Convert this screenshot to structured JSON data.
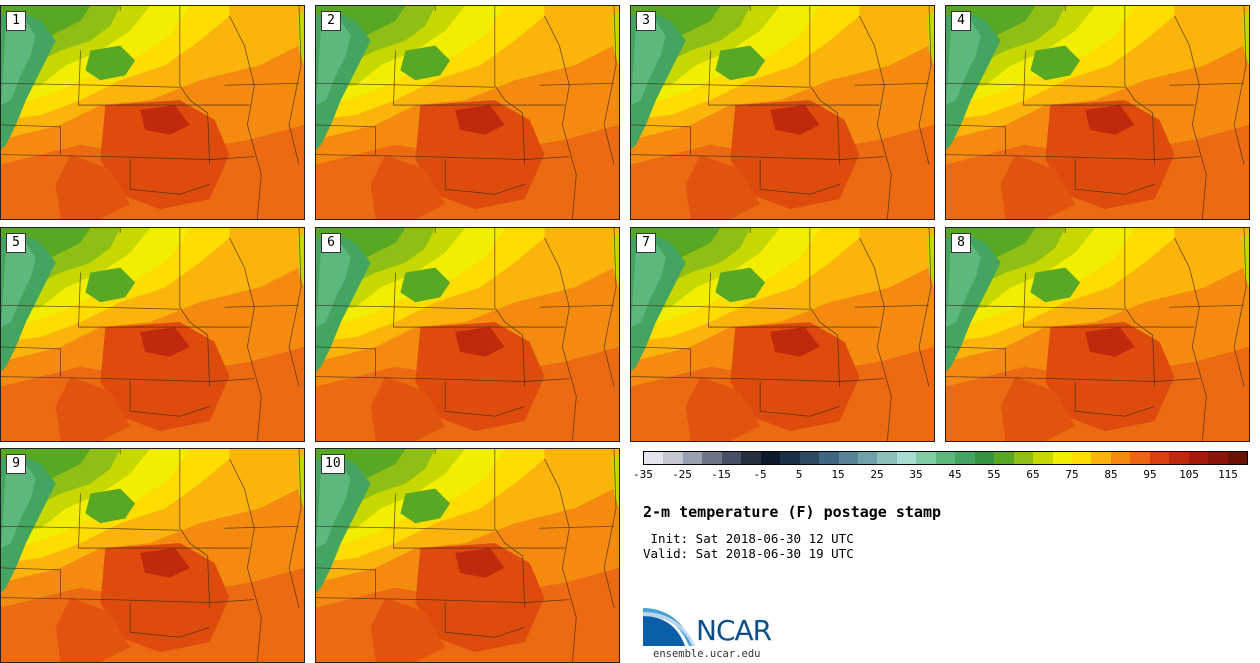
{
  "panels": [
    {
      "label": "1"
    },
    {
      "label": "2"
    },
    {
      "label": "3"
    },
    {
      "label": "4"
    },
    {
      "label": "5"
    },
    {
      "label": "6"
    },
    {
      "label": "7"
    },
    {
      "label": "8"
    },
    {
      "label": "9"
    },
    {
      "label": "10"
    }
  ],
  "colorbar": {
    "colors": [
      "#e3e6ec",
      "#c3c7d0",
      "#9ba0b0",
      "#6e7587",
      "#474f64",
      "#27303f",
      "#0d1a2b",
      "#1b2f45",
      "#2d4a62",
      "#3f6680",
      "#568496",
      "#6fa2a8",
      "#8cbeba",
      "#a8dcd0",
      "#7fcda0",
      "#5cb87d",
      "#43a55f",
      "#369440",
      "#59a824",
      "#8fbe14",
      "#c6d800",
      "#f2ee00",
      "#ffdd00",
      "#fbb40c",
      "#f58a10",
      "#ed6411",
      "#d9400d",
      "#c02a0c",
      "#a51c0a",
      "#8a1508",
      "#6b1206"
    ],
    "ticks": [
      "-35",
      "-25",
      "-15",
      "-5",
      "5",
      "15",
      "25",
      "35",
      "45",
      "55",
      "65",
      "75",
      "85",
      "95",
      "105",
      "115"
    ]
  },
  "title": "2-m temperature (F) postage stamp",
  "init": " Init: Sat 2018-06-30 12 UTC",
  "valid": "Valid: Sat 2018-06-30 19 UTC",
  "logo_text": "NCAR",
  "site": "ensemble.ucar.edu"
}
